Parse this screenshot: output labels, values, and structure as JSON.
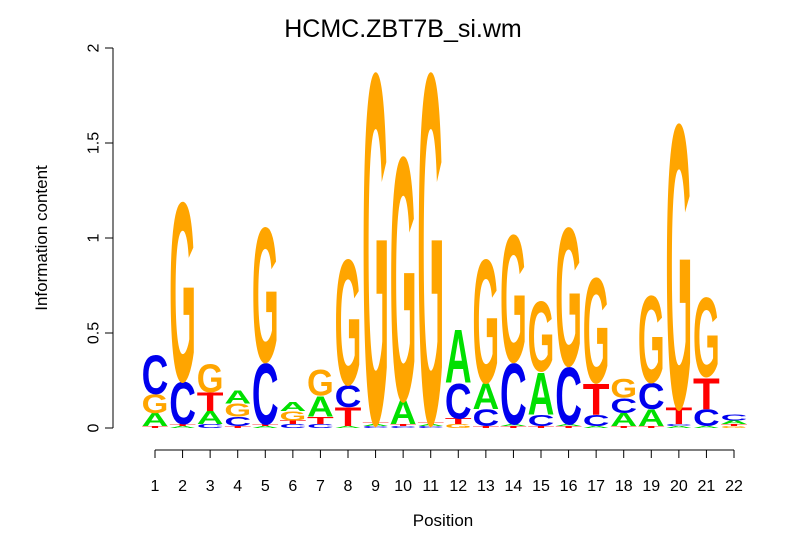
{
  "chart_data": {
    "type": "sequence-logo",
    "title": "HCMC.ZBT7B_si.wm",
    "xlabel": "Position",
    "ylabel": "Information content",
    "ylim": [
      0,
      2
    ],
    "y_ticks": [
      "0",
      "0.5",
      "1",
      "1.5",
      "2"
    ],
    "x_ticks": [
      "1",
      "2",
      "3",
      "4",
      "5",
      "6",
      "7",
      "8",
      "9",
      "10",
      "11",
      "12",
      "13",
      "14",
      "15",
      "16",
      "17",
      "18",
      "19",
      "20",
      "21",
      "22"
    ],
    "colors": {
      "A": "#00e000",
      "C": "#0000ee",
      "G": "#ffa500",
      "T": "#ff0000"
    },
    "positions": [
      {
        "pos": 1,
        "stack": [
          [
            "T",
            0.01
          ],
          [
            "A",
            0.07
          ],
          [
            "G",
            0.1
          ],
          [
            "C",
            0.21
          ]
        ]
      },
      {
        "pos": 2,
        "stack": [
          [
            "A",
            0.01
          ],
          [
            "T",
            0.01
          ],
          [
            "C",
            0.23
          ],
          [
            "G",
            0.97
          ]
        ]
      },
      {
        "pos": 3,
        "stack": [
          [
            "C",
            0.02
          ],
          [
            "A",
            0.07
          ],
          [
            "T",
            0.1
          ],
          [
            "G",
            0.15
          ]
        ]
      },
      {
        "pos": 4,
        "stack": [
          [
            "T",
            0.01
          ],
          [
            "C",
            0.05
          ],
          [
            "G",
            0.07
          ],
          [
            "A",
            0.07
          ]
        ]
      },
      {
        "pos": 5,
        "stack": [
          [
            "A",
            0.01
          ],
          [
            "T",
            0.01
          ],
          [
            "C",
            0.33
          ],
          [
            "G",
            0.73
          ]
        ]
      },
      {
        "pos": 6,
        "stack": [
          [
            "C",
            0.02
          ],
          [
            "T",
            0.02
          ],
          [
            "G",
            0.05
          ],
          [
            "A",
            0.05
          ]
        ]
      },
      {
        "pos": 7,
        "stack": [
          [
            "C",
            0.02
          ],
          [
            "T",
            0.04
          ],
          [
            "A",
            0.11
          ],
          [
            "G",
            0.14
          ]
        ]
      },
      {
        "pos": 8,
        "stack": [
          [
            "A",
            0.01
          ],
          [
            "T",
            0.1
          ],
          [
            "C",
            0.12
          ],
          [
            "G",
            0.68
          ]
        ]
      },
      {
        "pos": 9,
        "stack": [
          [
            "C",
            0.01
          ],
          [
            "A",
            0.01
          ],
          [
            "T",
            0.01
          ],
          [
            "G",
            1.9
          ]
        ]
      },
      {
        "pos": 10,
        "stack": [
          [
            "C",
            0.01
          ],
          [
            "T",
            0.01
          ],
          [
            "A",
            0.13
          ],
          [
            "G",
            1.32
          ]
        ]
      },
      {
        "pos": 11,
        "stack": [
          [
            "C",
            0.01
          ],
          [
            "A",
            0.01
          ],
          [
            "T",
            0.01
          ],
          [
            "G",
            1.9
          ]
        ]
      },
      {
        "pos": 12,
        "stack": [
          [
            "G",
            0.02
          ],
          [
            "T",
            0.03
          ],
          [
            "C",
            0.19
          ],
          [
            "A",
            0.29
          ]
        ]
      },
      {
        "pos": 13,
        "stack": [
          [
            "T",
            0.01
          ],
          [
            "C",
            0.09
          ],
          [
            "A",
            0.14
          ],
          [
            "G",
            0.67
          ]
        ]
      },
      {
        "pos": 14,
        "stack": [
          [
            "T",
            0.01
          ],
          [
            "A",
            0.01
          ],
          [
            "C",
            0.33
          ],
          [
            "G",
            0.69
          ]
        ]
      },
      {
        "pos": 15,
        "stack": [
          [
            "T",
            0.01
          ],
          [
            "C",
            0.06
          ],
          [
            "A",
            0.23
          ],
          [
            "G",
            0.38
          ]
        ]
      },
      {
        "pos": 16,
        "stack": [
          [
            "T",
            0.01
          ],
          [
            "A",
            0.01
          ],
          [
            "C",
            0.31
          ],
          [
            "G",
            0.75
          ]
        ]
      },
      {
        "pos": 17,
        "stack": [
          [
            "A",
            0.01
          ],
          [
            "C",
            0.06
          ],
          [
            "T",
            0.17
          ],
          [
            "G",
            0.57
          ]
        ]
      },
      {
        "pos": 18,
        "stack": [
          [
            "T",
            0.01
          ],
          [
            "A",
            0.07
          ],
          [
            "C",
            0.08
          ],
          [
            "G",
            0.1
          ]
        ]
      },
      {
        "pos": 19,
        "stack": [
          [
            "T",
            0.01
          ],
          [
            "A",
            0.09
          ],
          [
            "C",
            0.14
          ],
          [
            "G",
            0.47
          ]
        ]
      },
      {
        "pos": 20,
        "stack": [
          [
            "A",
            0.01
          ],
          [
            "C",
            0.01
          ],
          [
            "T",
            0.09
          ],
          [
            "G",
            1.54
          ]
        ]
      },
      {
        "pos": 21,
        "stack": [
          [
            "A",
            0.01
          ],
          [
            "C",
            0.09
          ],
          [
            "T",
            0.17
          ],
          [
            "G",
            0.43
          ]
        ]
      },
      {
        "pos": 22,
        "stack": [
          [
            "G",
            0.01
          ],
          [
            "T",
            0.01
          ],
          [
            "A",
            0.02
          ],
          [
            "C",
            0.03
          ]
        ]
      }
    ]
  }
}
